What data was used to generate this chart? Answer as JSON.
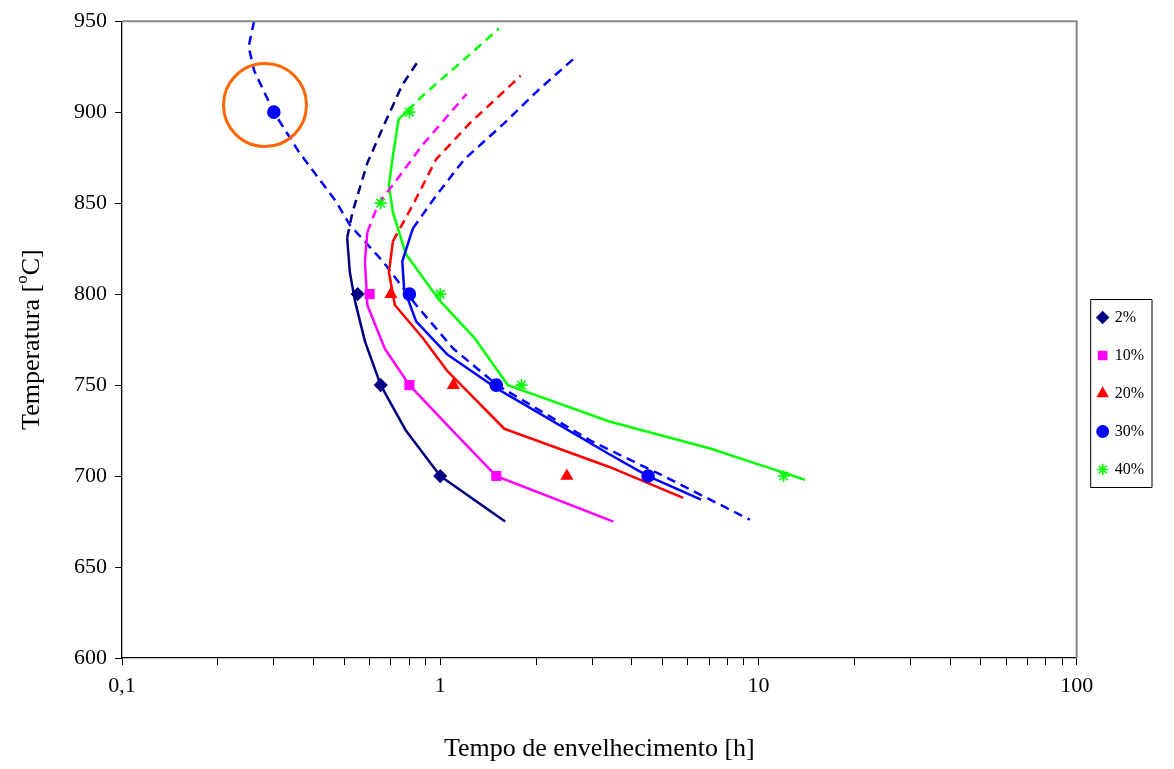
{
  "chart_data": {
    "type": "scatter",
    "xlabel": "Tempo de envelhecimento [h]",
    "ylabel": "Temperatura [$^{o}$C]",
    "log": "x",
    "xlim": [
      0.1,
      100
    ],
    "xticks": [
      {
        "value": 0.1,
        "label": "0,1"
      },
      {
        "value": 0.2,
        "label": null
      },
      {
        "value": 0.3,
        "label": null
      },
      {
        "value": 0.4,
        "label": null
      },
      {
        "value": 0.5,
        "label": null
      },
      {
        "value": 0.6,
        "label": null
      },
      {
        "value": 0.7,
        "label": null
      },
      {
        "value": 0.8,
        "label": null
      },
      {
        "value": 0.9,
        "label": null
      },
      1,
      {
        "value": 2,
        "label": null
      },
      {
        "value": 3,
        "label": null
      },
      {
        "value": 4,
        "label": null
      },
      {
        "value": 5,
        "label": null
      },
      {
        "value": 6,
        "label": null
      },
      {
        "value": 7,
        "label": null
      },
      {
        "value": 8,
        "label": null
      },
      {
        "value": 9,
        "label": null
      },
      10,
      {
        "value": 20,
        "label": null
      },
      {
        "value": 30,
        "label": null
      },
      {
        "value": 40,
        "label": null
      },
      {
        "value": 50,
        "label": null
      },
      {
        "value": 60,
        "label": null
      },
      {
        "value": 70,
        "label": null
      },
      {
        "value": 80,
        "label": null
      },
      {
        "value": 90,
        "label": null
      },
      100
    ],
    "ylim": [
      600,
      950
    ],
    "yticks": [
      600,
      650,
      700,
      750,
      800,
      850,
      900,
      950
    ],
    "grid": false,
    "legend": "right",
    "series": [
      {
        "name": "2%",
        "color": "#000080",
        "marker": "diamond",
        "x": [
          0.55,
          0.65,
          1.0
        ],
        "values": [
          800,
          750,
          700
        ]
      },
      {
        "name": "10%",
        "color": "#ff00ff",
        "marker": "square",
        "x": [
          0.6,
          0.8,
          1.5
        ],
        "values": [
          800,
          750,
          700
        ]
      },
      {
        "name": "20%",
        "color": "#ff0000",
        "marker": "triangle",
        "x": [
          0.7,
          1.1,
          2.5
        ],
        "values": [
          800,
          750,
          700
        ]
      },
      {
        "name": "30%",
        "color": "#0000ff",
        "marker": "circle",
        "x": [
          0.3,
          0.8,
          1.5,
          4.5
        ],
        "values": [
          900,
          800,
          750,
          700
        ]
      },
      {
        "name": "40%",
        "color": "#00ff00",
        "marker": "cross",
        "x": [
          0.8,
          0.65,
          1.0,
          1.8,
          12
        ],
        "values": [
          900,
          850,
          800,
          750,
          700
        ]
      },
      {
        "type": "line",
        "color": "#000080",
        "line_style": "solid",
        "x": [
          1.6,
          1.0,
          0.78,
          0.65,
          0.58,
          0.54,
          0.52,
          0.51
        ],
        "values": [
          675,
          700,
          725,
          750,
          774,
          796,
          812,
          831
        ]
      },
      {
        "type": "line",
        "color": "#000080",
        "line_style": "dashed",
        "x": [
          0.51,
          0.53,
          0.59,
          0.67,
          0.76,
          0.86
        ],
        "values": [
          831,
          845,
          872,
          894,
          915,
          929
        ]
      },
      {
        "type": "line",
        "color": "#ff00ff",
        "line_style": "solid",
        "x": [
          3.5,
          1.5,
          1.12,
          0.8,
          0.67,
          0.59,
          0.58,
          0.59
        ],
        "values": [
          675,
          700,
          723,
          750,
          770,
          794,
          818,
          834
        ]
      },
      {
        "type": "line",
        "color": "#ff00ff",
        "line_style": "dashed",
        "x": [
          0.59,
          0.64,
          0.71,
          0.88,
          1.21
        ],
        "values": [
          834,
          850,
          860,
          882,
          910
        ]
      },
      {
        "type": "line",
        "color": "#ff0000",
        "line_style": "solid",
        "x": [
          5.8,
          3.4,
          1.59,
          1.05,
          0.88,
          0.72,
          0.69,
          0.71
        ],
        "values": [
          688,
          705,
          726,
          758,
          776,
          794,
          812,
          829
        ]
      },
      {
        "type": "line",
        "color": "#ff0000",
        "line_style": "dashed",
        "x": [
          0.71,
          0.82,
          0.97,
          1.24,
          1.79
        ],
        "values": [
          829,
          849,
          874,
          894,
          920
        ]
      },
      {
        "type": "line",
        "color": "#0000ff",
        "line_style": "solid",
        "x": [
          6.6,
          4.5,
          3.4,
          1.51,
          1.05,
          0.84,
          0.77,
          0.76,
          0.82
        ],
        "values": [
          687,
          700,
          712,
          748,
          767,
          785,
          803,
          818,
          836
        ]
      },
      {
        "type": "line",
        "color": "#0000ff",
        "line_style": "dashed",
        "x": [
          0.82,
          0.97,
          1.19,
          1.59,
          2.03,
          2.69
        ],
        "values": [
          836,
          854,
          874,
          894,
          912,
          931
        ]
      },
      {
        "type": "line",
        "color": "#00ff00",
        "line_style": "solid",
        "x": [
          14,
          7.1,
          3.4,
          1.63,
          1.28,
          0.99,
          0.78,
          0.71,
          0.69,
          0.71,
          0.74,
          0.79
        ],
        "values": [
          698,
          715,
          730,
          750,
          776,
          797,
          822,
          845,
          860,
          876,
          896,
          901
        ]
      },
      {
        "type": "line",
        "color": "#00ff00",
        "line_style": "dashed",
        "x": [
          0.79,
          0.88,
          1.19,
          1.53
        ],
        "values": [
          901,
          909,
          929,
          946
        ]
      },
      {
        "type": "line",
        "color": "#0000ff",
        "line_style": "dashed",
        "x": [
          0.26,
          0.25,
          0.26,
          0.28,
          0.3,
          0.36,
          0.47,
          0.52,
          0.66,
          0.84,
          1.1,
          1.51,
          3.0,
          4.9,
          9.4
        ],
        "values": [
          950,
          936,
          923,
          911,
          900,
          878,
          851,
          838,
          818,
          794,
          770,
          750,
          719,
          701,
          676
        ]
      }
    ]
  }
}
